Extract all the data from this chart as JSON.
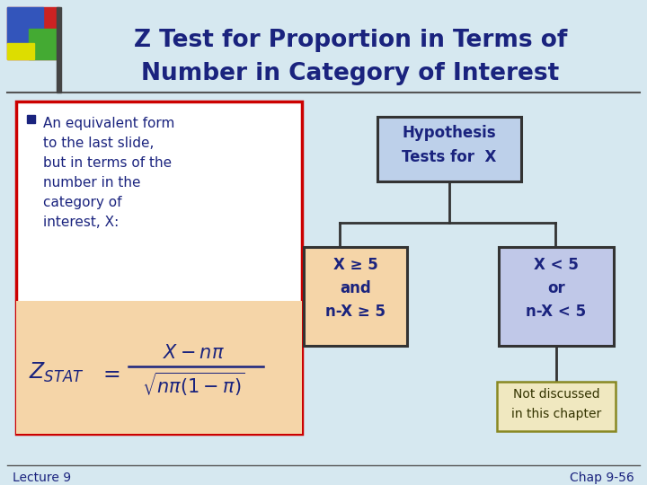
{
  "title_line1": "Z Test for Proportion in Terms of",
  "title_line2": "Number in Category of Interest",
  "title_color": "#1A237E",
  "bg_color": "#D6E8F0",
  "bullet_text": [
    "An equivalent form",
    "to the last slide,",
    "but in terms of the",
    "number in the",
    "category of",
    "interest, X:"
  ],
  "box_hypothesis_text": [
    "Hypothesis",
    "Tests for  X"
  ],
  "box_left_text": [
    "X ≥ 5",
    "and",
    "n-X ≥ 5"
  ],
  "box_right_text": [
    "X < 5",
    "or",
    "n-X < 5"
  ],
  "box_note_text": [
    "Not discussed",
    "in this chapter"
  ],
  "footer_left": "Lecture 9",
  "footer_right": "Chap 9-56",
  "formula_color": "#1A237E",
  "box_outline_color": "#CC0000",
  "box_hypothesis_bg": "#BDD0EA",
  "box_left_bg": "#F5D5A8",
  "box_right_bg": "#C0C8E8",
  "box_note_bg": "#F0E8C0",
  "deco_red": "#CC2222",
  "deco_blue": "#3355BB",
  "deco_green": "#44AA33",
  "deco_yellow": "#DDDD00",
  "deco_bar": "#444444",
  "line_color": "#333333",
  "footer_line_color": "#555555"
}
